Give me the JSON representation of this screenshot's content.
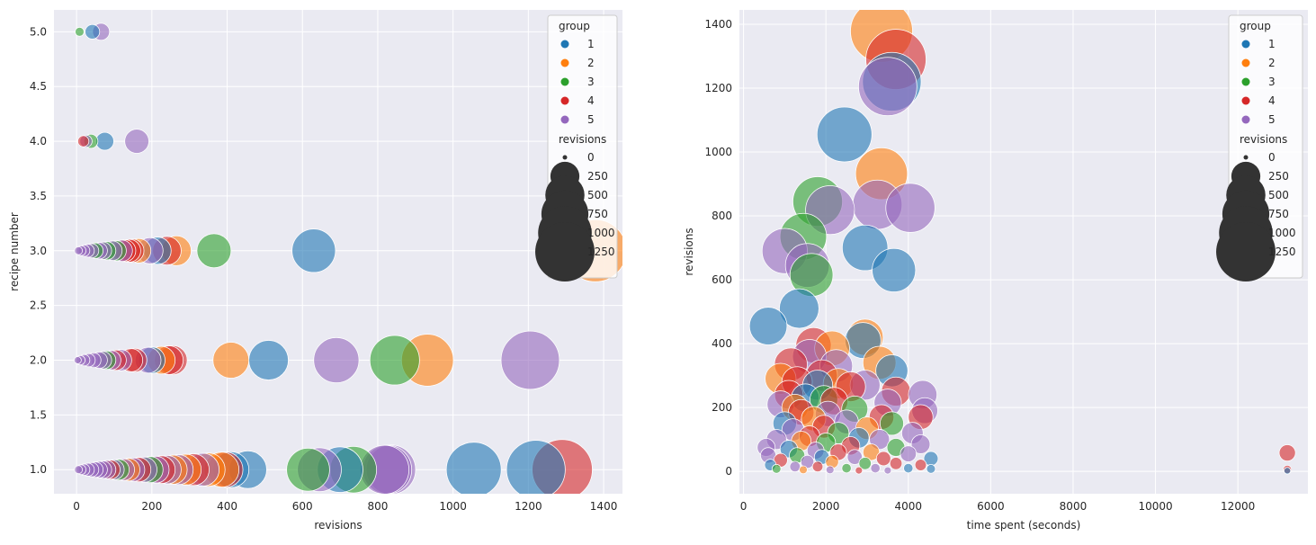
{
  "colors": {
    "background": "#eaeaf2",
    "grid": "#ffffff",
    "legend_frame": "#cccccc",
    "size_legend": "#333333",
    "groups": [
      "#1f77b4",
      "#ff7f0e",
      "#2ca02c",
      "#d62728",
      "#9467bd"
    ]
  },
  "chart_data": [
    {
      "type": "scatter",
      "xlabel": "revisions",
      "ylabel": "recipe number",
      "xlim": [
        -60,
        1450
      ],
      "ylim": [
        0.78,
        5.2
      ],
      "xticks": [
        0,
        200,
        400,
        600,
        800,
        1000,
        1200,
        1400
      ],
      "yticks": [
        1.0,
        1.5,
        2.0,
        2.5,
        3.0,
        3.5,
        4.0,
        4.5,
        5.0
      ],
      "ytick_labels": [
        "1.0",
        "1.5",
        "2.0",
        "2.5",
        "3.0",
        "3.5",
        "4.0",
        "4.5",
        "5.0"
      ],
      "grid": true,
      "legend": {
        "position": "upper-right",
        "hue_title": "group",
        "hue_labels": [
          "1",
          "2",
          "3",
          "4",
          "5"
        ],
        "size_title": "revisions",
        "size_labels": [
          "0",
          "250",
          "500",
          "750",
          "1000",
          "1250"
        ],
        "size_values": [
          0,
          250,
          500,
          750,
          1000,
          1250
        ]
      },
      "points": [
        {
          "x": 1378,
          "y": 3,
          "group": 2
        },
        {
          "x": 630,
          "y": 3,
          "group": 1
        },
        {
          "x": 365,
          "y": 3,
          "group": 3
        },
        {
          "x": 265,
          "y": 3,
          "group": 2
        },
        {
          "x": 240,
          "y": 3,
          "group": 4
        },
        {
          "x": 215,
          "y": 3,
          "group": 1
        },
        {
          "x": 195,
          "y": 3,
          "group": 5
        },
        {
          "x": 165,
          "y": 3,
          "group": 2
        },
        {
          "x": 148,
          "y": 3,
          "group": 4
        },
        {
          "x": 140,
          "y": 3,
          "group": 4
        },
        {
          "x": 128,
          "y": 3,
          "group": 4
        },
        {
          "x": 120,
          "y": 3,
          "group": 5
        },
        {
          "x": 105,
          "y": 3,
          "group": 3
        },
        {
          "x": 95,
          "y": 3,
          "group": 5
        },
        {
          "x": 80,
          "y": 3,
          "group": 3
        },
        {
          "x": 70,
          "y": 3,
          "group": 5
        },
        {
          "x": 60,
          "y": 3,
          "group": 5
        },
        {
          "x": 50,
          "y": 3,
          "group": 3
        },
        {
          "x": 40,
          "y": 3,
          "group": 5
        },
        {
          "x": 30,
          "y": 3,
          "group": 5
        },
        {
          "x": 20,
          "y": 3,
          "group": 5
        },
        {
          "x": 12,
          "y": 3,
          "group": 5
        },
        {
          "x": 5,
          "y": 3,
          "group": 5
        },
        {
          "x": 1205,
          "y": 2,
          "group": 5
        },
        {
          "x": 932,
          "y": 2,
          "group": 2
        },
        {
          "x": 845,
          "y": 2,
          "group": 3
        },
        {
          "x": 690,
          "y": 2,
          "group": 5
        },
        {
          "x": 510,
          "y": 2,
          "group": 1
        },
        {
          "x": 410,
          "y": 2,
          "group": 2
        },
        {
          "x": 255,
          "y": 2,
          "group": 4
        },
        {
          "x": 245,
          "y": 2,
          "group": 4
        },
        {
          "x": 225,
          "y": 2,
          "group": 2
        },
        {
          "x": 200,
          "y": 2,
          "group": 1
        },
        {
          "x": 190,
          "y": 2,
          "group": 5
        },
        {
          "x": 155,
          "y": 2,
          "group": 4
        },
        {
          "x": 145,
          "y": 2,
          "group": 4
        },
        {
          "x": 118,
          "y": 2,
          "group": 5
        },
        {
          "x": 105,
          "y": 2,
          "group": 4
        },
        {
          "x": 92,
          "y": 2,
          "group": 5
        },
        {
          "x": 80,
          "y": 2,
          "group": 3
        },
        {
          "x": 70,
          "y": 2,
          "group": 5
        },
        {
          "x": 60,
          "y": 2,
          "group": 5
        },
        {
          "x": 45,
          "y": 2,
          "group": 5
        },
        {
          "x": 32,
          "y": 2,
          "group": 5
        },
        {
          "x": 20,
          "y": 2,
          "group": 5
        },
        {
          "x": 10,
          "y": 2,
          "group": 5
        },
        {
          "x": 3,
          "y": 2,
          "group": 5
        },
        {
          "x": 1290,
          "y": 1,
          "group": 4
        },
        {
          "x": 1220,
          "y": 1,
          "group": 1
        },
        {
          "x": 1055,
          "y": 1,
          "group": 1
        },
        {
          "x": 835,
          "y": 1,
          "group": 5
        },
        {
          "x": 825,
          "y": 1,
          "group": 5
        },
        {
          "x": 818,
          "y": 1,
          "group": 5
        },
        {
          "x": 735,
          "y": 1,
          "group": 3
        },
        {
          "x": 700,
          "y": 1,
          "group": 1
        },
        {
          "x": 645,
          "y": 1,
          "group": 5
        },
        {
          "x": 615,
          "y": 1,
          "group": 3
        },
        {
          "x": 455,
          "y": 1,
          "group": 1
        },
        {
          "x": 410,
          "y": 1,
          "group": 1
        },
        {
          "x": 395,
          "y": 1,
          "group": 4
        },
        {
          "x": 385,
          "y": 1,
          "group": 2
        },
        {
          "x": 350,
          "y": 1,
          "group": 2
        },
        {
          "x": 335,
          "y": 1,
          "group": 5
        },
        {
          "x": 310,
          "y": 1,
          "group": 4
        },
        {
          "x": 290,
          "y": 1,
          "group": 2
        },
        {
          "x": 270,
          "y": 1,
          "group": 5
        },
        {
          "x": 255,
          "y": 1,
          "group": 2
        },
        {
          "x": 240,
          "y": 1,
          "group": 5
        },
        {
          "x": 225,
          "y": 1,
          "group": 4
        },
        {
          "x": 210,
          "y": 1,
          "group": 5
        },
        {
          "x": 195,
          "y": 1,
          "group": 3
        },
        {
          "x": 180,
          "y": 1,
          "group": 5
        },
        {
          "x": 165,
          "y": 1,
          "group": 4
        },
        {
          "x": 150,
          "y": 1,
          "group": 5
        },
        {
          "x": 138,
          "y": 1,
          "group": 2
        },
        {
          "x": 125,
          "y": 1,
          "group": 5
        },
        {
          "x": 112,
          "y": 1,
          "group": 3
        },
        {
          "x": 100,
          "y": 1,
          "group": 5
        },
        {
          "x": 90,
          "y": 1,
          "group": 4
        },
        {
          "x": 80,
          "y": 1,
          "group": 5
        },
        {
          "x": 70,
          "y": 1,
          "group": 5
        },
        {
          "x": 60,
          "y": 1,
          "group": 5
        },
        {
          "x": 50,
          "y": 1,
          "group": 5
        },
        {
          "x": 40,
          "y": 1,
          "group": 5
        },
        {
          "x": 30,
          "y": 1,
          "group": 5
        },
        {
          "x": 20,
          "y": 1,
          "group": 5
        },
        {
          "x": 12,
          "y": 1,
          "group": 5
        },
        {
          "x": 5,
          "y": 1,
          "group": 5
        },
        {
          "x": 160,
          "y": 4,
          "group": 5
        },
        {
          "x": 75,
          "y": 4,
          "group": 1
        },
        {
          "x": 38,
          "y": 4,
          "group": 3
        },
        {
          "x": 25,
          "y": 4,
          "group": 5
        },
        {
          "x": 18,
          "y": 4,
          "group": 4
        },
        {
          "x": 65,
          "y": 5,
          "group": 5
        },
        {
          "x": 42,
          "y": 5,
          "group": 1
        },
        {
          "x": 8,
          "y": 5,
          "group": 3
        }
      ]
    },
    {
      "type": "scatter",
      "xlabel": "time spent (seconds)",
      "ylabel": "revisions",
      "xlim": [
        -100,
        13700
      ],
      "ylim": [
        -70,
        1445
      ],
      "xticks": [
        0,
        2000,
        4000,
        6000,
        8000,
        10000,
        12000
      ],
      "yticks": [
        0,
        200,
        400,
        600,
        800,
        1000,
        1200,
        1400
      ],
      "ytick_labels": [
        "0",
        "200",
        "400",
        "600",
        "800",
        "1000",
        "1200",
        "1400"
      ],
      "grid": true,
      "legend": {
        "position": "upper-right",
        "hue_title": "group",
        "hue_labels": [
          "1",
          "2",
          "3",
          "4",
          "5"
        ],
        "size_title": "revisions",
        "size_labels": [
          "0",
          "250",
          "500",
          "750",
          "1000",
          "1250"
        ],
        "size_values": [
          0,
          250,
          500,
          750,
          1000,
          1250
        ]
      },
      "points": [
        {
          "x": 3350,
          "y": 1378,
          "group": 2
        },
        {
          "x": 3700,
          "y": 1290,
          "group": 4
        },
        {
          "x": 3600,
          "y": 1220,
          "group": 1
        },
        {
          "x": 3500,
          "y": 1205,
          "group": 5
        },
        {
          "x": 2450,
          "y": 1055,
          "group": 1
        },
        {
          "x": 3350,
          "y": 932,
          "group": 2
        },
        {
          "x": 1800,
          "y": 845,
          "group": 3
        },
        {
          "x": 3250,
          "y": 835,
          "group": 5
        },
        {
          "x": 4050,
          "y": 825,
          "group": 5
        },
        {
          "x": 2100,
          "y": 818,
          "group": 5
        },
        {
          "x": 1450,
          "y": 735,
          "group": 3
        },
        {
          "x": 2950,
          "y": 700,
          "group": 1
        },
        {
          "x": 1000,
          "y": 690,
          "group": 5
        },
        {
          "x": 1550,
          "y": 645,
          "group": 5
        },
        {
          "x": 3650,
          "y": 630,
          "group": 1
        },
        {
          "x": 1650,
          "y": 615,
          "group": 3
        },
        {
          "x": 1350,
          "y": 510,
          "group": 1
        },
        {
          "x": 600,
          "y": 455,
          "group": 1
        },
        {
          "x": 2900,
          "y": 410,
          "group": 1
        },
        {
          "x": 2950,
          "y": 420,
          "group": 2
        },
        {
          "x": 1700,
          "y": 395,
          "group": 4
        },
        {
          "x": 2150,
          "y": 385,
          "group": 2
        },
        {
          "x": 1600,
          "y": 360,
          "group": 5
        },
        {
          "x": 1150,
          "y": 335,
          "group": 4
        },
        {
          "x": 3300,
          "y": 340,
          "group": 2
        },
        {
          "x": 3600,
          "y": 315,
          "group": 1
        },
        {
          "x": 1900,
          "y": 300,
          "group": 4
        },
        {
          "x": 2250,
          "y": 330,
          "group": 5
        },
        {
          "x": 900,
          "y": 290,
          "group": 2
        },
        {
          "x": 1300,
          "y": 280,
          "group": 4
        },
        {
          "x": 1800,
          "y": 270,
          "group": 1
        },
        {
          "x": 2300,
          "y": 275,
          "group": 2
        },
        {
          "x": 2600,
          "y": 265,
          "group": 4
        },
        {
          "x": 2950,
          "y": 270,
          "group": 5
        },
        {
          "x": 3700,
          "y": 250,
          "group": 4
        },
        {
          "x": 4350,
          "y": 240,
          "group": 5
        },
        {
          "x": 1100,
          "y": 240,
          "group": 4
        },
        {
          "x": 1500,
          "y": 230,
          "group": 1
        },
        {
          "x": 1950,
          "y": 225,
          "group": 3
        },
        {
          "x": 2200,
          "y": 220,
          "group": 4
        },
        {
          "x": 3500,
          "y": 215,
          "group": 5
        },
        {
          "x": 900,
          "y": 210,
          "group": 5
        },
        {
          "x": 1250,
          "y": 200,
          "group": 2
        },
        {
          "x": 2700,
          "y": 195,
          "group": 3
        },
        {
          "x": 4400,
          "y": 190,
          "group": 5
        },
        {
          "x": 1400,
          "y": 185,
          "group": 4
        },
        {
          "x": 2050,
          "y": 180,
          "group": 5
        },
        {
          "x": 3350,
          "y": 170,
          "group": 4
        },
        {
          "x": 4300,
          "y": 170,
          "group": 4
        },
        {
          "x": 1700,
          "y": 165,
          "group": 2
        },
        {
          "x": 2500,
          "y": 155,
          "group": 5
        },
        {
          "x": 3600,
          "y": 150,
          "group": 3
        },
        {
          "x": 1000,
          "y": 150,
          "group": 1
        },
        {
          "x": 1950,
          "y": 140,
          "group": 4
        },
        {
          "x": 3000,
          "y": 135,
          "group": 2
        },
        {
          "x": 1200,
          "y": 130,
          "group": 5
        },
        {
          "x": 2300,
          "y": 120,
          "group": 3
        },
        {
          "x": 4100,
          "y": 120,
          "group": 5
        },
        {
          "x": 1600,
          "y": 110,
          "group": 4
        },
        {
          "x": 2800,
          "y": 105,
          "group": 1
        },
        {
          "x": 3300,
          "y": 100,
          "group": 5
        },
        {
          "x": 800,
          "y": 100,
          "group": 5
        },
        {
          "x": 1400,
          "y": 95,
          "group": 2
        },
        {
          "x": 2000,
          "y": 90,
          "group": 3
        },
        {
          "x": 4300,
          "y": 85,
          "group": 5
        },
        {
          "x": 2600,
          "y": 80,
          "group": 4
        },
        {
          "x": 3700,
          "y": 75,
          "group": 3
        },
        {
          "x": 550,
          "y": 75,
          "group": 5
        },
        {
          "x": 1100,
          "y": 70,
          "group": 1
        },
        {
          "x": 1750,
          "y": 65,
          "group": 5
        },
        {
          "x": 2300,
          "y": 60,
          "group": 4
        },
        {
          "x": 3100,
          "y": 60,
          "group": 2
        },
        {
          "x": 4000,
          "y": 55,
          "group": 5
        },
        {
          "x": 600,
          "y": 50,
          "group": 5
        },
        {
          "x": 1300,
          "y": 50,
          "group": 3
        },
        {
          "x": 1900,
          "y": 45,
          "group": 1
        },
        {
          "x": 2700,
          "y": 45,
          "group": 5
        },
        {
          "x": 3400,
          "y": 40,
          "group": 4
        },
        {
          "x": 4550,
          "y": 40,
          "group": 1
        },
        {
          "x": 900,
          "y": 35,
          "group": 4
        },
        {
          "x": 1550,
          "y": 30,
          "group": 5
        },
        {
          "x": 2150,
          "y": 30,
          "group": 2
        },
        {
          "x": 2950,
          "y": 25,
          "group": 3
        },
        {
          "x": 3700,
          "y": 25,
          "group": 4
        },
        {
          "x": 4300,
          "y": 20,
          "group": 4
        },
        {
          "x": 650,
          "y": 20,
          "group": 1
        },
        {
          "x": 1250,
          "y": 15,
          "group": 5
        },
        {
          "x": 1800,
          "y": 15,
          "group": 4
        },
        {
          "x": 2500,
          "y": 10,
          "group": 3
        },
        {
          "x": 3200,
          "y": 10,
          "group": 5
        },
        {
          "x": 4000,
          "y": 10,
          "group": 1
        },
        {
          "x": 4550,
          "y": 8,
          "group": 1
        },
        {
          "x": 800,
          "y": 8,
          "group": 3
        },
        {
          "x": 1450,
          "y": 5,
          "group": 2
        },
        {
          "x": 2100,
          "y": 5,
          "group": 5
        },
        {
          "x": 2800,
          "y": 3,
          "group": 4
        },
        {
          "x": 3500,
          "y": 3,
          "group": 5
        },
        {
          "x": 13200,
          "y": 58,
          "group": 4
        },
        {
          "x": 13200,
          "y": 6,
          "group": 4
        },
        {
          "x": 13200,
          "y": 2,
          "group": 1
        }
      ]
    }
  ]
}
